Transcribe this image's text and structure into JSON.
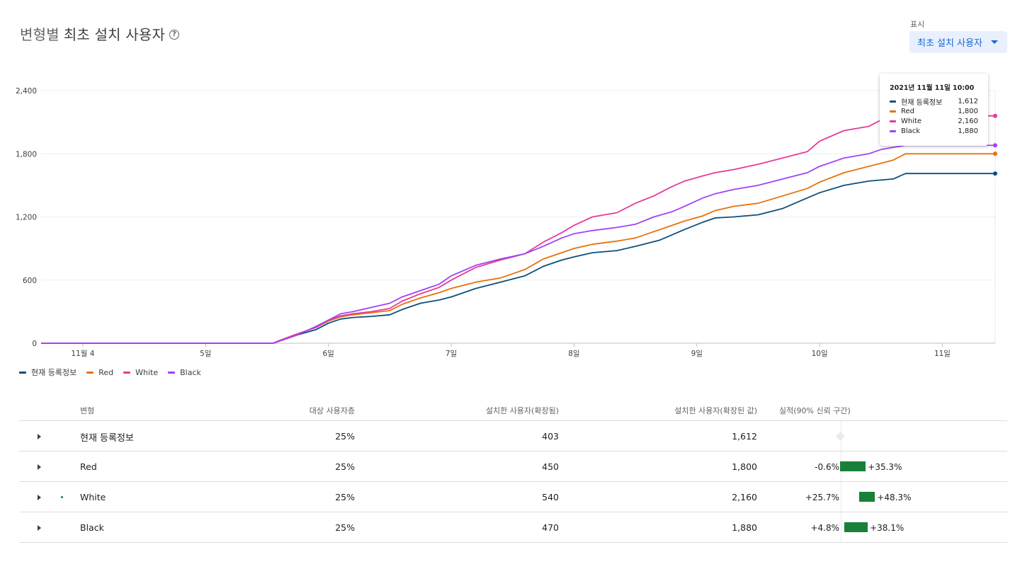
{
  "header": {
    "title_prefix": "변형별",
    "title_main": "최초 설치 사용자",
    "help_icon": "help-circle-icon",
    "view_label": "표시",
    "view_selected": "최초 설치 사용자"
  },
  "colors": {
    "현재 등록정보": "#0b4f7d",
    "Red": "#e8710a",
    "White": "#e8399a",
    "Black": "#a142f4",
    "ci_bar": "#188038"
  },
  "chart_data": {
    "type": "line",
    "x_ticks": [
      "11월 4",
      "5일",
      "6일",
      "7일",
      "8일",
      "9일",
      "10일",
      "11일"
    ],
    "y_ticks": [
      "0",
      "600",
      "1,200",
      "1,800",
      "2,400"
    ],
    "ylim": [
      0,
      2400
    ],
    "xlim_days": [
      3.66,
      11.43
    ],
    "grid": true,
    "legend_position": "bottom-left",
    "series": [
      {
        "name": "현재 등록정보",
        "color": "#0b4f7d",
        "x": [
          3.66,
          5.55,
          5.6,
          5.75,
          5.9,
          6.0,
          6.1,
          6.2,
          6.35,
          6.5,
          6.6,
          6.75,
          6.9,
          7.0,
          7.2,
          7.4,
          7.6,
          7.75,
          7.9,
          8.0,
          8.15,
          8.35,
          8.5,
          8.7,
          8.9,
          9.05,
          9.15,
          9.3,
          9.5,
          9.7,
          9.9,
          10.0,
          10.2,
          10.4,
          10.6,
          10.7,
          11.43
        ],
        "y": [
          0,
          0,
          20,
          80,
          130,
          190,
          230,
          245,
          255,
          270,
          320,
          380,
          410,
          440,
          520,
          580,
          640,
          730,
          790,
          820,
          860,
          880,
          920,
          980,
          1080,
          1150,
          1190,
          1200,
          1220,
          1280,
          1380,
          1430,
          1500,
          1540,
          1560,
          1612,
          1612
        ]
      },
      {
        "name": "Red",
        "color": "#e8710a",
        "x": [
          3.66,
          5.55,
          5.6,
          5.75,
          5.9,
          6.0,
          6.1,
          6.2,
          6.35,
          6.5,
          6.6,
          6.75,
          6.9,
          7.0,
          7.2,
          7.4,
          7.6,
          7.75,
          7.9,
          8.0,
          8.15,
          8.35,
          8.5,
          8.65,
          8.8,
          8.9,
          9.05,
          9.15,
          9.3,
          9.5,
          9.7,
          9.9,
          10.0,
          10.2,
          10.4,
          10.6,
          10.7,
          11.43
        ],
        "y": [
          0,
          0,
          25,
          90,
          150,
          210,
          250,
          270,
          290,
          310,
          370,
          430,
          480,
          520,
          580,
          620,
          700,
          800,
          860,
          900,
          940,
          970,
          1000,
          1060,
          1120,
          1160,
          1210,
          1260,
          1300,
          1330,
          1400,
          1470,
          1530,
          1620,
          1680,
          1740,
          1800,
          1800
        ]
      },
      {
        "name": "White",
        "color": "#e8399a",
        "x": [
          3.66,
          5.55,
          5.6,
          5.75,
          5.9,
          6.0,
          6.1,
          6.2,
          6.35,
          6.5,
          6.6,
          6.75,
          6.9,
          7.0,
          7.2,
          7.4,
          7.6,
          7.75,
          7.9,
          8.0,
          8.15,
          8.35,
          8.5,
          8.65,
          8.8,
          8.9,
          9.05,
          9.15,
          9.3,
          9.5,
          9.7,
          9.9,
          10.0,
          10.2,
          10.4,
          10.5,
          10.6,
          10.7,
          11.43
        ],
        "y": [
          0,
          0,
          25,
          90,
          150,
          220,
          260,
          280,
          300,
          330,
          400,
          470,
          530,
          600,
          720,
          790,
          850,
          960,
          1050,
          1120,
          1200,
          1240,
          1330,
          1400,
          1490,
          1540,
          1590,
          1620,
          1650,
          1700,
          1760,
          1820,
          1920,
          2020,
          2060,
          2120,
          2140,
          2160,
          2160
        ]
      },
      {
        "name": "Black",
        "color": "#a142f4",
        "x": [
          3.66,
          5.55,
          5.6,
          5.75,
          5.9,
          6.0,
          6.1,
          6.2,
          6.35,
          6.5,
          6.6,
          6.75,
          6.9,
          7.0,
          7.2,
          7.4,
          7.6,
          7.75,
          7.9,
          8.0,
          8.15,
          8.35,
          8.5,
          8.65,
          8.8,
          8.9,
          9.05,
          9.15,
          9.3,
          9.5,
          9.7,
          9.9,
          10.0,
          10.2,
          10.4,
          10.5,
          10.6,
          10.7,
          11.43
        ],
        "y": [
          0,
          0,
          20,
          80,
          160,
          220,
          280,
          300,
          340,
          380,
          440,
          500,
          560,
          640,
          740,
          800,
          850,
          920,
          1000,
          1040,
          1070,
          1100,
          1130,
          1200,
          1250,
          1300,
          1380,
          1420,
          1460,
          1500,
          1560,
          1620,
          1680,
          1760,
          1800,
          1840,
          1860,
          1880,
          1880
        ]
      }
    ]
  },
  "tooltip": {
    "title": "2021년 11월 11일 10:00",
    "rows": [
      {
        "name": "현재 등록정보",
        "value": "1,612"
      },
      {
        "name": "Red",
        "value": "1,800"
      },
      {
        "name": "White",
        "value": "2,160"
      },
      {
        "name": "Black",
        "value": "1,880"
      }
    ]
  },
  "legend": [
    "현재 등록정보",
    "Red",
    "White",
    "Black"
  ],
  "table": {
    "headers": {
      "variant": "변형",
      "audience": "대상 사용자층",
      "installs": "설치한 사용자(확장됨)",
      "scaled": "설치한 사용자(확장된 값)",
      "performance": "실적(90% 신뢰 구간)"
    },
    "rows": [
      {
        "name": "현재 등록정보",
        "audience": "25%",
        "installs": "403",
        "scaled": "1,612",
        "ci_low": "",
        "ci_high": "",
        "ci": null,
        "leading": false
      },
      {
        "name": "Red",
        "audience": "25%",
        "installs": "450",
        "scaled": "1,800",
        "ci_low": "-0.6%",
        "ci_high": "+35.3%",
        "ci": [
          -0.6,
          35.3
        ],
        "leading": false
      },
      {
        "name": "White",
        "audience": "25%",
        "installs": "540",
        "scaled": "2,160",
        "ci_low": "+25.7%",
        "ci_high": "+48.3%",
        "ci": [
          25.7,
          48.3
        ],
        "leading": true
      },
      {
        "name": "Black",
        "audience": "25%",
        "installs": "470",
        "scaled": "1,880",
        "ci_low": "+4.8%",
        "ci_high": "+38.1%",
        "ci": [
          4.8,
          38.1
        ],
        "leading": false
      }
    ]
  }
}
